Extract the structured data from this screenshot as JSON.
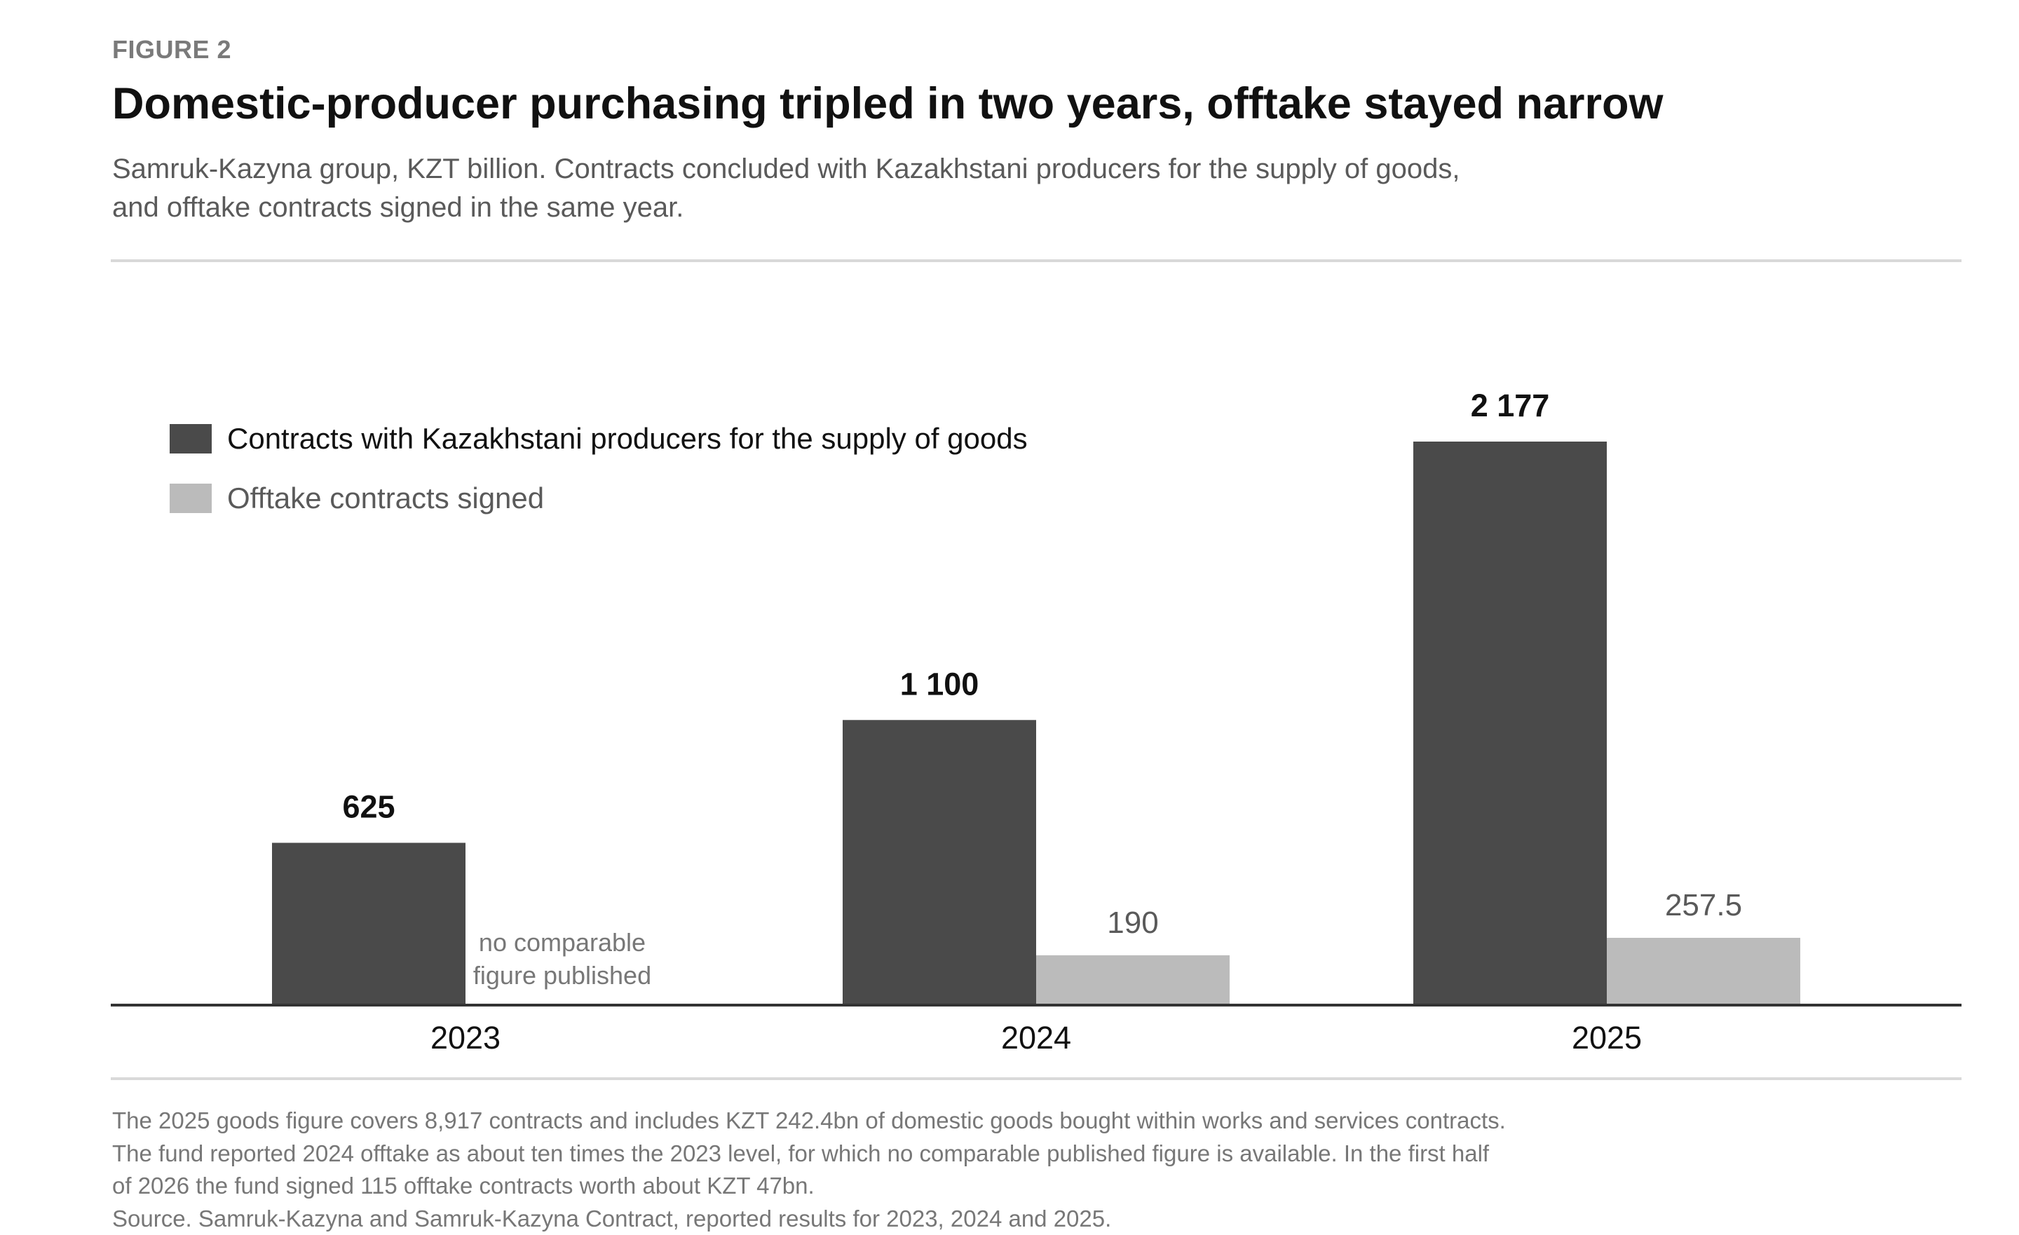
{
  "header": {
    "kicker": "FIGURE 2",
    "title": "Domestic-producer purchasing tripled in two years, offtake stayed narrow",
    "subtitle_lines": [
      "Samruk-Kazyna group, KZT billion. Contracts concluded with Kazakhstani producers for the supply of goods,",
      "and offtake contracts signed in the same year."
    ]
  },
  "chart_data": {
    "type": "bar",
    "categories": [
      "2023",
      "2024",
      "2025"
    ],
    "ylim": [
      0,
      2177
    ],
    "grid": false,
    "legend_placement": "top-left",
    "series": [
      {
        "name": "Contracts with Kazakhstani producers for the supply of goods",
        "values": [
          625,
          1100,
          2177
        ],
        "labels": [
          "625",
          "1 100",
          "2 177"
        ],
        "color": "#4a4a4a",
        "label_color": "#111111"
      },
      {
        "name": "Offtake contracts signed",
        "values": [
          null,
          190,
          257.5
        ],
        "labels": [
          "",
          "190",
          "257.5"
        ],
        "color": "#bbbbbb",
        "label_color": "#5a5a5a"
      }
    ],
    "annotations": [
      {
        "category": "2023",
        "series": 1,
        "lines": [
          "no comparable",
          "figure published"
        ]
      }
    ]
  },
  "notes": {
    "lines": [
      "The 2025 goods figure covers 8,917 contracts and includes KZT 242.4bn of domestic goods bought within works and services contracts.",
      "The fund reported 2024 offtake as about ten times the 2023 level, for which no comparable published figure is available. In the first half",
      "of 2026 the fund signed 115 offtake contracts worth about KZT 47bn.",
      "Source. Samruk-Kazyna and Samruk-Kazyna Contract, reported results for 2023, 2024 and 2025."
    ]
  }
}
